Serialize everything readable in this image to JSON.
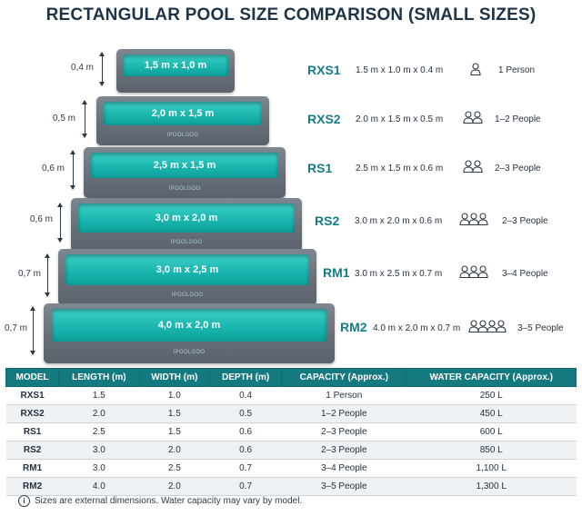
{
  "title": "RECTANGULAR POOL SIZE COMPARISON (SMALL SIZES)",
  "brand": "IPOOLGOO",
  "pools": [
    {
      "model": "RXS1",
      "label": "1,5 m x 1,0 m",
      "depth_label": "0,4 m",
      "dims": "1.5 m x 1.0 m x 0.4 m",
      "capacity": "1 Person",
      "people": 1
    },
    {
      "model": "RXS2",
      "label": "2,0 m x 1,5 m",
      "depth_label": "0,5 m",
      "dims": "2.0 m x 1.5 m x 0.5 m",
      "capacity": "1–2 People",
      "people": 2
    },
    {
      "model": "RS1",
      "label": "2,5 m x 1,5 m",
      "depth_label": "0,6 m",
      "dims": "2.5 m x 1.5 m x 0.6 m",
      "capacity": "2–3 People",
      "people": 2
    },
    {
      "model": "RS2",
      "label": "3,0 m x 2,0 m",
      "depth_label": "0,6 m",
      "dims": "3.0 m x 2.0 m x 0.6 m",
      "capacity": "2–3 People",
      "people": 3
    },
    {
      "model": "RM1",
      "label": "3,0 m x 2,5 m",
      "depth_label": "0,7 m",
      "dims": "3.0 m x 2.5 m x 0.7 m",
      "capacity": "3–4 People",
      "people": 3
    },
    {
      "model": "RM2",
      "label": "4,0 m x 2,0 m",
      "depth_label": "0,7 m",
      "dims": "4.0 m x 2.0 m x 0.7 m",
      "capacity": "3–5 People",
      "people": 4
    }
  ],
  "table": {
    "headers": [
      "MODEL",
      "LENGTH (m)",
      "WIDTH (m)",
      "DEPTH (m)",
      "CAPACITY (Approx.)",
      "WATER CAPACITY (Approx.)"
    ],
    "rows": [
      [
        "RXS1",
        "1.5",
        "1.0",
        "0.4",
        "1 Person",
        "250 L"
      ],
      [
        "RXS2",
        "2.0",
        "1.5",
        "0.5",
        "1–2 People",
        "450 L"
      ],
      [
        "RS1",
        "2.5",
        "1.5",
        "0.6",
        "2–3 People",
        "600 L"
      ],
      [
        "RS2",
        "3.0",
        "2.0",
        "0.6",
        "2–3 People",
        "850 L"
      ],
      [
        "RM1",
        "3.0",
        "2.5",
        "0.7",
        "3–4 People",
        "1,100 L"
      ],
      [
        "RM2",
        "4.0",
        "2.0",
        "0.7",
        "3–5 People",
        "1,300 L"
      ]
    ]
  },
  "note": "Sizes are external dimensions. Water capacity may vary by model.",
  "colors": {
    "accent": "#157a80",
    "water": "#1fbab2",
    "frame": "#6b737c",
    "model_text": "#157d86"
  }
}
